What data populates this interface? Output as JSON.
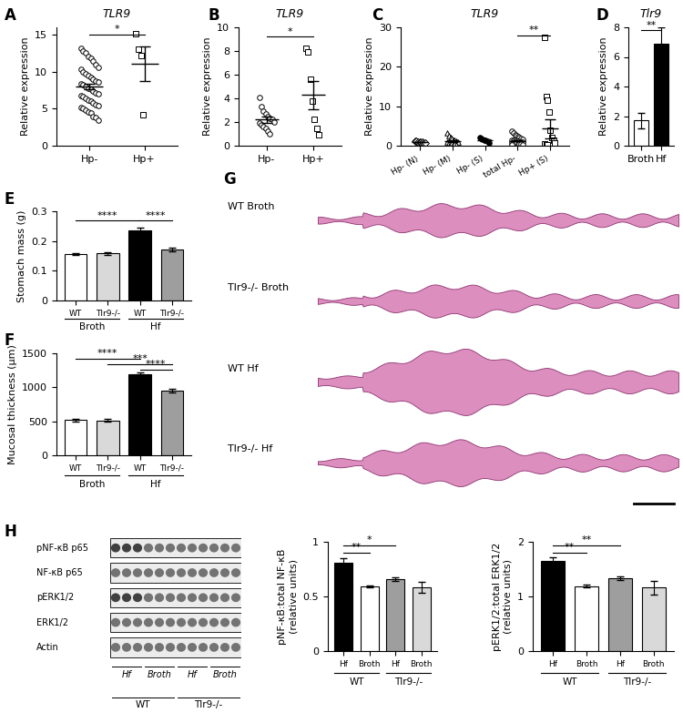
{
  "panel_letters": [
    "A",
    "B",
    "C",
    "D",
    "E",
    "F",
    "G",
    "H"
  ],
  "chart_data": [
    {
      "type": "scatter",
      "title": "TLR9",
      "y_label": "Relative expression",
      "categories": [
        "Hp-",
        "Hp+"
      ],
      "values": [
        [
          13.2,
          12.8,
          12.5,
          12.1,
          11.8,
          11.5,
          11.0,
          10.6,
          10.3,
          10.0,
          9.7,
          9.5,
          9.2,
          9.0,
          8.8,
          8.6,
          8.4,
          8.2,
          8.0,
          7.8,
          7.6,
          7.4,
          7.2,
          7.0,
          6.8,
          6.6,
          6.4,
          6.2,
          6.0,
          5.8,
          5.6,
          5.4,
          5.2,
          5.0,
          4.8,
          4.6,
          4.4,
          4.0,
          3.8,
          3.5
        ],
        [
          15.2,
          13.0,
          12.2,
          4.2
        ]
      ],
      "means": [
        8.0,
        11.1
      ],
      "errors": [
        0.35,
        2.3
      ],
      "markers": [
        "circle",
        "square"
      ],
      "colors": [
        "white",
        "white"
      ],
      "ylim": [
        0,
        16
      ],
      "yticks": [
        0,
        5,
        10,
        15
      ],
      "annotations": [
        {
          "text": "*",
          "from": 0,
          "to": 1,
          "y": 15
        }
      ]
    },
    {
      "type": "scatter",
      "title": "TLR9",
      "y_label": "Relative expression",
      "categories": [
        "Hp-",
        "Hp+"
      ],
      "values": [
        [
          4.1,
          3.3,
          2.9,
          2.7,
          2.5,
          2.3,
          2.2,
          2.0,
          1.9,
          1.8,
          1.6,
          1.5,
          1.2,
          1.0
        ],
        [
          8.2,
          7.9,
          5.6,
          3.8,
          2.2,
          1.5,
          0.9
        ]
      ],
      "means": [
        2.2,
        4.3
      ],
      "errors": [
        0.25,
        1.2
      ],
      "markers": [
        "circle",
        "square"
      ],
      "colors": [
        "white",
        "white"
      ],
      "ylim": [
        0,
        10
      ],
      "yticks": [
        0,
        2,
        4,
        6,
        8,
        10
      ],
      "annotations": [
        {
          "text": "*",
          "from": 0,
          "to": 1,
          "y": 9.2
        }
      ]
    },
    {
      "type": "scatter",
      "title": "TLR9",
      "y_label": "Relative expression",
      "categories": [
        "Hp- (N)",
        "Hp- (M)",
        "Hp- (S)",
        "total Hp-",
        "Hp+ (S)"
      ],
      "values": [
        [
          1.2,
          1.1,
          1.0,
          1.0,
          0.9,
          0.9,
          0.8,
          0.7
        ],
        [
          3.2,
          2.5,
          2.0,
          1.8,
          1.5,
          1.3,
          1.1,
          1.0,
          0.9,
          0.8,
          0.7,
          0.6,
          0.5,
          0.4,
          0.3
        ],
        [
          2.0,
          1.8,
          1.6,
          1.5,
          1.3,
          1.1,
          0.8
        ],
        [
          3.8,
          3.2,
          2.8,
          2.5,
          2.2,
          2.0,
          1.8,
          1.6,
          1.5,
          1.4,
          1.3,
          1.2,
          1.1,
          1.0,
          1.0,
          0.9,
          0.8,
          0.8,
          0.7,
          0.6,
          0.5,
          0.5,
          0.4,
          0.3,
          0.2
        ],
        [
          27.5,
          12.5,
          11.5,
          8.5,
          4.0,
          2.0,
          1.5,
          0.8,
          0.5,
          0.3,
          0.2
        ]
      ],
      "means": [
        0.95,
        1.2,
        1.4,
        1.2,
        4.3
      ],
      "errors": [
        0.06,
        0.2,
        0.15,
        0.15,
        2.4
      ],
      "markers": [
        "diamond",
        "triangle",
        "circle",
        "circle",
        "square"
      ],
      "colors": [
        "white",
        "white",
        "black",
        "white",
        "white"
      ],
      "ylim": [
        0,
        30
      ],
      "yticks": [
        0,
        10,
        20,
        30
      ],
      "annotations": [
        {
          "text": "**",
          "from": 3,
          "to": 4,
          "y": 28
        }
      ]
    },
    {
      "type": "bar",
      "title": "Tlr9",
      "y_label": "Relative expression",
      "categories": [
        "Broth",
        "Hf"
      ],
      "values": [
        1.7,
        6.9
      ],
      "errors": [
        0.5,
        1.1
      ],
      "colors": [
        "white",
        "black"
      ],
      "ylim": [
        0,
        8
      ],
      "yticks": [
        0,
        2,
        4,
        6,
        8
      ],
      "annotations": [
        {
          "text": "**",
          "from": 0,
          "to": 1,
          "y": 7.8
        }
      ]
    },
    {
      "type": "bar",
      "y_label": "Stomach mass (g)",
      "categories": [
        "WT",
        "Tlr9-/-",
        "WT",
        "Tlr9-/-"
      ],
      "groups": [
        "Broth",
        "Hf"
      ],
      "values": [
        0.155,
        0.158,
        0.237,
        0.172
      ],
      "errors": [
        0.003,
        0.004,
        0.007,
        0.006
      ],
      "colors": [
        "white",
        "#d9d9d9",
        "black",
        "#9e9e9e"
      ],
      "ylim": [
        0,
        0.3
      ],
      "yticks": [
        0,
        0.1,
        0.2,
        0.3
      ],
      "annotations": [
        {
          "text": "****",
          "from": 0,
          "to": 2,
          "y": 0.268
        },
        {
          "text": "****",
          "from": 2,
          "to": 3,
          "y": 0.268
        }
      ]
    },
    {
      "type": "bar",
      "y_label": "Mucosal thickness (μm)",
      "categories": [
        "WT",
        "Tlr9-/-",
        "WT",
        "Tlr9-/-"
      ],
      "groups": [
        "Broth",
        "Hf"
      ],
      "values": [
        520,
        510,
        1190,
        950
      ],
      "errors": [
        20,
        20,
        30,
        25
      ],
      "colors": [
        "white",
        "#d9d9d9",
        "black",
        "#9e9e9e"
      ],
      "ylim": [
        0,
        1500
      ],
      "yticks": [
        0,
        500,
        1000,
        1500
      ],
      "annotations": [
        {
          "text": "****",
          "from": 0,
          "to": 2,
          "y": 1420
        },
        {
          "text": "***",
          "from": 1,
          "to": 3,
          "y": 1340
        },
        {
          "text": "****",
          "from": 2,
          "to": 3,
          "y": 1260
        }
      ]
    },
    {
      "type": "bar",
      "y_label": "pNF-κB:total NF-κB\n(relative units)",
      "categories": [
        "Hf",
        "Broth",
        "Hf",
        "Broth"
      ],
      "groups": [
        "WT",
        "Tlr9-/-"
      ],
      "values": [
        0.81,
        0.59,
        0.66,
        0.58
      ],
      "errors": [
        0.04,
        0.01,
        0.015,
        0.05
      ],
      "colors": [
        "black",
        "white",
        "#9e9e9e",
        "#d9d9d9"
      ],
      "ylim": [
        0,
        1
      ],
      "yticks": [
        0,
        0.5,
        1
      ],
      "annotations": [
        {
          "text": "**",
          "from": 0,
          "to": 1,
          "y": 0.9
        },
        {
          "text": "*",
          "from": 0,
          "to": 2,
          "y": 0.97
        }
      ]
    },
    {
      "type": "bar",
      "y_label": "pERK1/2:total ERK1/2\n(relative units)",
      "categories": [
        "Hf",
        "Broth",
        "Hf",
        "Broth"
      ],
      "groups": [
        "WT",
        "Tlr9-/-"
      ],
      "values": [
        1.65,
        1.19,
        1.33,
        1.16
      ],
      "errors": [
        0.07,
        0.02,
        0.03,
        0.13
      ],
      "colors": [
        "black",
        "white",
        "#9e9e9e",
        "#d9d9d9"
      ],
      "ylim": [
        0,
        2
      ],
      "yticks": [
        0,
        1,
        2
      ],
      "annotations": [
        {
          "text": "**",
          "from": 0,
          "to": 1,
          "y": 1.8
        },
        {
          "text": "**",
          "from": 0,
          "to": 2,
          "y": 1.94
        }
      ]
    }
  ],
  "histology": {
    "labels": [
      "WT Broth",
      "Tlr9-/- Broth",
      "WT Hf",
      "Tlr9-/- Hf"
    ]
  },
  "blot": {
    "rows": [
      "pNF-κB p65",
      "NF-κB p65",
      "pERK1/2",
      "ERK1/2",
      "Actin"
    ],
    "lane_groups": [
      "Hf",
      "Broth",
      "Hf",
      "Broth"
    ],
    "conditions": [
      "WT",
      "Tlr9-/-"
    ]
  }
}
